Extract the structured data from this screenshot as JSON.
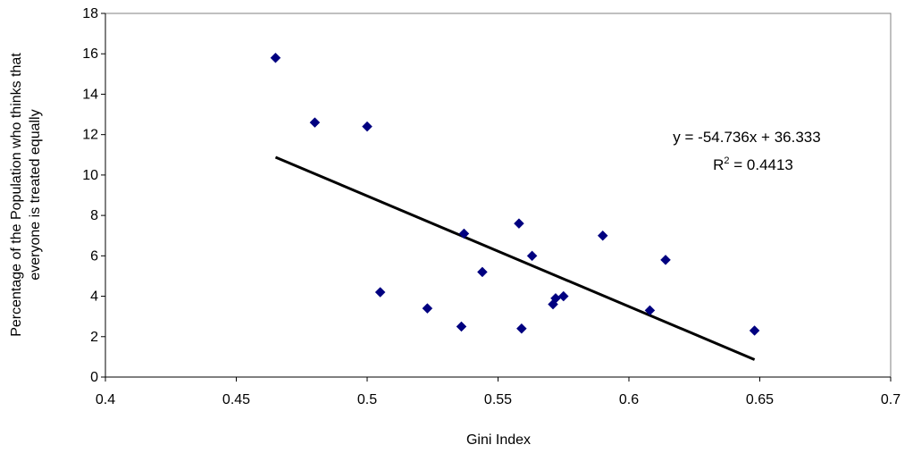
{
  "chart_data": {
    "type": "scatter",
    "xlabel": "Gini Index",
    "ylabel_lines": [
      "Percentage of the Population who thinks that",
      "everyone is treated equally"
    ],
    "xlim": [
      0.4,
      0.7
    ],
    "ylim": [
      0,
      18
    ],
    "x_ticks": [
      "0.4",
      "0.45",
      "0.5",
      "0.55",
      "0.6",
      "0.65",
      "0.7"
    ],
    "y_ticks": [
      "0",
      "2",
      "4",
      "6",
      "8",
      "10",
      "12",
      "14",
      "16",
      "18"
    ],
    "grid": false,
    "marker": "diamond",
    "marker_color": "#000080",
    "points": [
      {
        "x": 0.465,
        "y": 15.8
      },
      {
        "x": 0.48,
        "y": 12.6
      },
      {
        "x": 0.5,
        "y": 12.4
      },
      {
        "x": 0.505,
        "y": 4.2
      },
      {
        "x": 0.523,
        "y": 3.4
      },
      {
        "x": 0.536,
        "y": 2.5
      },
      {
        "x": 0.537,
        "y": 7.1
      },
      {
        "x": 0.544,
        "y": 5.2
      },
      {
        "x": 0.558,
        "y": 7.6
      },
      {
        "x": 0.559,
        "y": 2.4
      },
      {
        "x": 0.563,
        "y": 6.0
      },
      {
        "x": 0.571,
        "y": 3.6
      },
      {
        "x": 0.572,
        "y": 3.9
      },
      {
        "x": 0.575,
        "y": 4.0
      },
      {
        "x": 0.59,
        "y": 7.0
      },
      {
        "x": 0.608,
        "y": 3.3
      },
      {
        "x": 0.614,
        "y": 5.8
      },
      {
        "x": 0.648,
        "y": 2.3
      }
    ],
    "trendline": {
      "slope": -54.736,
      "intercept": 36.333,
      "x_range": [
        0.465,
        0.648
      ],
      "color": "#000000"
    },
    "annotations": {
      "equation": "y = -54.736x + 36.333",
      "r2_prefix": "R",
      "r2_exp": "2",
      "r2_rest": " = 0.4413"
    }
  }
}
